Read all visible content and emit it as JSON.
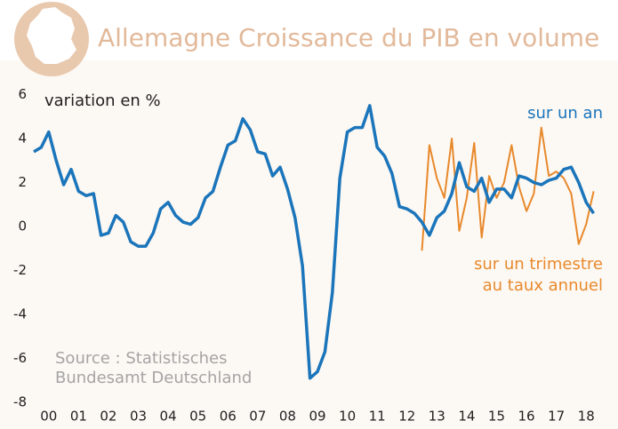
{
  "chart_data": {
    "type": "line",
    "title": "Allemagne Croissance du PIB en volume",
    "annotations": [
      "variation en %",
      "sur un an",
      "sur un trimestre",
      "au taux annuel",
      "Source : Statistisches",
      "Bundesamt Deutschland"
    ],
    "x": [
      2000,
      2000.25,
      2000.5,
      2000.75,
      2001,
      2001.25,
      2001.5,
      2001.75,
      2002,
      2002.25,
      2002.5,
      2002.75,
      2003,
      2003.25,
      2003.5,
      2003.75,
      2004,
      2004.25,
      2004.5,
      2004.75,
      2005,
      2005.25,
      2005.5,
      2005.75,
      2006,
      2006.25,
      2006.5,
      2006.75,
      2007,
      2007.25,
      2007.5,
      2007.75,
      2008,
      2008.25,
      2008.5,
      2008.75,
      2009,
      2009.25,
      2009.5,
      2009.75,
      2010,
      2010.25,
      2010.5,
      2010.75,
      2011,
      2011.25,
      2011.5,
      2011.75,
      2012,
      2012.25,
      2012.5,
      2012.75,
      2013,
      2013.25,
      2013.5,
      2013.75,
      2014,
      2014.25,
      2014.5,
      2014.75,
      2015,
      2015.25,
      2015.5,
      2015.75,
      2016,
      2016.25,
      2016.5,
      2016.75,
      2017,
      2017.25,
      2017.5,
      2017.75,
      2018,
      2018.25,
      2018.5,
      2018.75
    ],
    "series": [
      {
        "name": "sur un an",
        "color": "#1b75bb",
        "values": [
          3.4,
          3.6,
          4.3,
          3.0,
          1.9,
          2.6,
          1.6,
          1.4,
          1.5,
          -0.4,
          -0.3,
          0.5,
          0.2,
          -0.7,
          -0.9,
          -0.9,
          -0.3,
          0.8,
          1.1,
          0.5,
          0.2,
          0.1,
          0.4,
          1.3,
          1.6,
          2.7,
          3.7,
          3.9,
          4.9,
          4.4,
          3.4,
          3.3,
          2.3,
          2.7,
          1.7,
          0.4,
          -1.8,
          -6.9,
          -6.6,
          -5.7,
          -3.0,
          2.2,
          4.3,
          4.5,
          4.5,
          5.5,
          3.6,
          3.2,
          2.4,
          0.9,
          0.8,
          0.6,
          0.2,
          -0.4,
          0.4,
          0.7,
          1.5,
          2.9,
          1.8,
          1.6,
          2.2,
          1.1,
          1.7,
          1.7,
          1.3,
          2.3,
          2.2,
          2.0,
          1.9,
          2.1,
          2.2,
          2.6,
          2.7,
          2.0,
          1.1,
          0.6
        ]
      },
      {
        "name": "sur un trimestre au taux annuel",
        "color": "#e8892c",
        "values": [
          null,
          null,
          null,
          null,
          null,
          null,
          null,
          null,
          null,
          null,
          null,
          null,
          null,
          null,
          null,
          null,
          null,
          null,
          null,
          null,
          null,
          null,
          null,
          null,
          null,
          null,
          null,
          null,
          null,
          null,
          null,
          null,
          null,
          null,
          null,
          null,
          null,
          null,
          null,
          null,
          null,
          null,
          null,
          null,
          null,
          null,
          null,
          null,
          null,
          null,
          null,
          null,
          -1.1,
          3.7,
          2.2,
          1.3,
          4.0,
          -0.2,
          1.3,
          3.8,
          -0.5,
          2.3,
          1.3,
          2.0,
          3.7,
          1.8,
          0.7,
          1.5,
          4.5,
          2.3,
          2.5,
          2.2,
          1.5,
          -0.8,
          0.1,
          1.6
        ]
      }
    ],
    "xlim": [
      2000,
      2019
    ],
    "xticks": [
      {
        "value": 2000.5,
        "label": "00"
      },
      {
        "value": 2001.5,
        "label": "01"
      },
      {
        "value": 2002.5,
        "label": "02"
      },
      {
        "value": 2003.5,
        "label": "03"
      },
      {
        "value": 2004.5,
        "label": "04"
      },
      {
        "value": 2005.5,
        "label": "05"
      },
      {
        "value": 2006.5,
        "label": "06"
      },
      {
        "value": 2007.5,
        "label": "07"
      },
      {
        "value": 2008.5,
        "label": "08"
      },
      {
        "value": 2009.5,
        "label": "09"
      },
      {
        "value": 2010.5,
        "label": "10"
      },
      {
        "value": 2011.5,
        "label": "11"
      },
      {
        "value": 2012.5,
        "label": "12"
      },
      {
        "value": 2013.5,
        "label": "13"
      },
      {
        "value": 2014.5,
        "label": "14"
      },
      {
        "value": 2015.5,
        "label": "15"
      },
      {
        "value": 2016.5,
        "label": "16"
      },
      {
        "value": 2017.5,
        "label": "17"
      },
      {
        "value": 2018.5,
        "label": "18"
      }
    ],
    "ylim": [
      -8,
      6
    ],
    "yticks": [
      6,
      4,
      2,
      0,
      -2,
      -4,
      -6,
      -8
    ],
    "grid": false
  }
}
